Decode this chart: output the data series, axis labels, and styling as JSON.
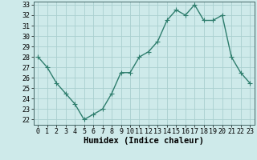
{
  "x": [
    0,
    1,
    2,
    3,
    4,
    5,
    6,
    7,
    8,
    9,
    10,
    11,
    12,
    13,
    14,
    15,
    16,
    17,
    18,
    19,
    20,
    21,
    22,
    23
  ],
  "y": [
    28.0,
    27.0,
    25.5,
    24.5,
    23.5,
    22.0,
    22.5,
    23.0,
    24.5,
    26.5,
    26.5,
    28.0,
    28.5,
    29.5,
    31.5,
    32.5,
    32.0,
    33.0,
    31.5,
    31.5,
    32.0,
    28.0,
    26.5,
    25.5
  ],
  "xlabel": "Humidex (Indice chaleur)",
  "ylim_min": 21.5,
  "ylim_max": 33.3,
  "xlim_min": -0.5,
  "xlim_max": 23.5,
  "yticks": [
    22,
    23,
    24,
    25,
    26,
    27,
    28,
    29,
    30,
    31,
    32,
    33
  ],
  "xticks": [
    0,
    1,
    2,
    3,
    4,
    5,
    6,
    7,
    8,
    9,
    10,
    11,
    12,
    13,
    14,
    15,
    16,
    17,
    18,
    19,
    20,
    21,
    22,
    23
  ],
  "line_color": "#2e7d6d",
  "bg_color": "#ceeaea",
  "grid_color": "#aacfcf",
  "tick_fontsize": 6.0,
  "xlabel_fontsize": 7.5,
  "marker_size": 2.5,
  "line_width": 1.0
}
